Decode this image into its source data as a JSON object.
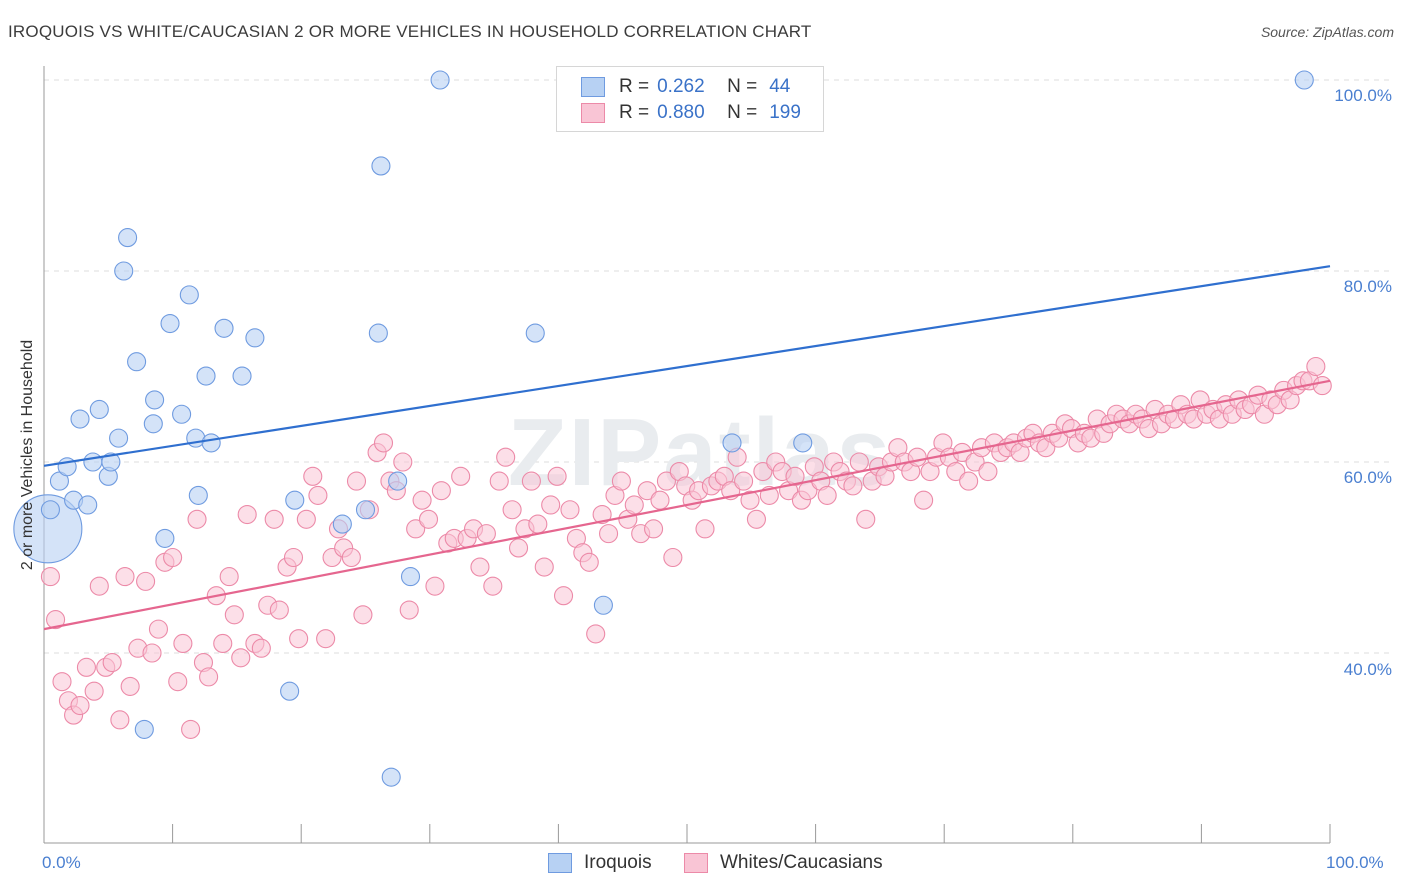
{
  "header": {
    "title": "IROQUOIS VS WHITE/CAUCASIAN 2 OR MORE VEHICLES IN HOUSEHOLD CORRELATION CHART",
    "source": "Source: ZipAtlas.com"
  },
  "watermark": {
    "text": "ZIPatlas"
  },
  "legend_top": {
    "rows": [
      {
        "r_label": "R =",
        "r_value": "0.262",
        "n_label": "N =",
        "n_value": "44",
        "color": "#b7d1f3",
        "border": "#6f9be0"
      },
      {
        "r_label": "R =",
        "r_value": "0.880",
        "n_label": "N =",
        "n_value": "199",
        "color": "#f9c5d5",
        "border": "#ec8aa8"
      }
    ]
  },
  "legend_bottom": {
    "items": [
      {
        "label": "Iroquois",
        "color": "#b7d1f3",
        "border": "#6f9be0"
      },
      {
        "label": "Whites/Caucasians",
        "color": "#f9c5d5",
        "border": "#ec8aa8"
      }
    ]
  },
  "chart_data": {
    "type": "scatter",
    "title": "IROQUOIS VS WHITE/CAUCASIAN 2 OR MORE VEHICLES IN HOUSEHOLD CORRELATION CHART",
    "xlabel": "",
    "ylabel": "2 or more Vehicles in Household",
    "xlim": [
      0,
      100
    ],
    "ylim": [
      20,
      102
    ],
    "x_tick_labels": [
      "0.0%",
      "100.0%"
    ],
    "y_ticks": [
      40,
      60,
      80,
      100
    ],
    "y_tick_labels": [
      "40.0%",
      "60.0%",
      "80.0%",
      "100.0%"
    ],
    "grid": true,
    "legend_position": "top-center",
    "series": [
      {
        "name": "Iroquois",
        "color": "#6f9be0",
        "fill": "#b7d1f3",
        "line_color": "#2f6fcf",
        "trend": {
          "x": [
            0,
            100
          ],
          "y": [
            59.6,
            80.5
          ]
        },
        "points": [
          [
            0.3,
            53.0
          ],
          [
            0.5,
            55.0
          ],
          [
            1.2,
            58.0
          ],
          [
            1.8,
            59.5
          ],
          [
            2.3,
            56.0
          ],
          [
            2.8,
            64.5
          ],
          [
            3.4,
            55.5
          ],
          [
            3.8,
            60.0
          ],
          [
            4.3,
            65.5
          ],
          [
            5.0,
            58.5
          ],
          [
            5.2,
            60.0
          ],
          [
            5.8,
            62.5
          ],
          [
            6.2,
            80.0
          ],
          [
            6.5,
            83.5
          ],
          [
            7.2,
            70.5
          ],
          [
            7.8,
            32.0
          ],
          [
            8.5,
            64.0
          ],
          [
            8.6,
            66.5
          ],
          [
            9.4,
            52.0
          ],
          [
            9.8,
            74.5
          ],
          [
            10.7,
            65.0
          ],
          [
            11.3,
            77.5
          ],
          [
            11.8,
            62.5
          ],
          [
            12.0,
            56.5
          ],
          [
            12.6,
            69.0
          ],
          [
            13.0,
            62.0
          ],
          [
            14.0,
            74.0
          ],
          [
            15.4,
            69.0
          ],
          [
            16.4,
            73.0
          ],
          [
            19.1,
            36.0
          ],
          [
            19.5,
            56.0
          ],
          [
            23.2,
            53.5
          ],
          [
            25.0,
            55.0
          ],
          [
            26.0,
            73.5
          ],
          [
            26.2,
            91.0
          ],
          [
            27.0,
            27.0
          ],
          [
            27.5,
            58.0
          ],
          [
            28.5,
            48.0
          ],
          [
            30.8,
            100.0
          ],
          [
            38.2,
            73.5
          ],
          [
            43.5,
            45.0
          ],
          [
            53.5,
            62.0
          ],
          [
            59.0,
            62.0
          ],
          [
            98.0,
            100.0
          ]
        ],
        "point_sizes": [
          34,
          9,
          9,
          9,
          9,
          9,
          9,
          9,
          9,
          9,
          9,
          9,
          9,
          9,
          9,
          9,
          9,
          9,
          9,
          9,
          9,
          9,
          9,
          9,
          9,
          9,
          9,
          9,
          9,
          9,
          9,
          9,
          9,
          9,
          9,
          9,
          9,
          9,
          9,
          9,
          9,
          9,
          9,
          9
        ]
      },
      {
        "name": "Whites/Caucasians",
        "color": "#ec8aa8",
        "fill": "#f9c5d5",
        "line_color": "#e5668f",
        "trend": {
          "x": [
            0,
            100
          ],
          "y": [
            42.5,
            68.5
          ]
        },
        "points": [
          [
            0.5,
            48.0
          ],
          [
            0.9,
            43.5
          ],
          [
            1.4,
            37.0
          ],
          [
            1.9,
            35.0
          ],
          [
            2.3,
            33.5
          ],
          [
            2.8,
            34.5
          ],
          [
            3.3,
            38.5
          ],
          [
            3.9,
            36.0
          ],
          [
            4.3,
            47.0
          ],
          [
            4.8,
            38.5
          ],
          [
            5.3,
            39.0
          ],
          [
            5.9,
            33.0
          ],
          [
            6.3,
            48.0
          ],
          [
            6.7,
            36.5
          ],
          [
            7.3,
            40.5
          ],
          [
            7.9,
            47.5
          ],
          [
            8.4,
            40.0
          ],
          [
            8.9,
            42.5
          ],
          [
            9.4,
            49.5
          ],
          [
            10.0,
            50.0
          ],
          [
            10.4,
            37.0
          ],
          [
            10.8,
            41.0
          ],
          [
            11.4,
            32.0
          ],
          [
            11.9,
            54.0
          ],
          [
            12.4,
            39.0
          ],
          [
            12.8,
            37.5
          ],
          [
            13.4,
            46.0
          ],
          [
            13.9,
            41.0
          ],
          [
            14.4,
            48.0
          ],
          [
            14.8,
            44.0
          ],
          [
            15.3,
            39.5
          ],
          [
            15.8,
            54.5
          ],
          [
            16.4,
            41.0
          ],
          [
            16.9,
            40.5
          ],
          [
            17.4,
            45.0
          ],
          [
            17.9,
            54.0
          ],
          [
            18.3,
            44.5
          ],
          [
            18.9,
            49.0
          ],
          [
            19.4,
            50.0
          ],
          [
            19.8,
            41.5
          ],
          [
            20.4,
            54.0
          ],
          [
            20.9,
            58.5
          ],
          [
            21.3,
            56.5
          ],
          [
            21.9,
            41.5
          ],
          [
            22.4,
            50.0
          ],
          [
            22.9,
            53.0
          ],
          [
            23.3,
            51.0
          ],
          [
            23.9,
            50.0
          ],
          [
            24.3,
            58.0
          ],
          [
            24.8,
            44.0
          ],
          [
            25.3,
            55.0
          ],
          [
            25.9,
            61.0
          ],
          [
            26.4,
            62.0
          ],
          [
            26.9,
            58.0
          ],
          [
            27.4,
            57.0
          ],
          [
            27.9,
            60.0
          ],
          [
            28.4,
            44.5
          ],
          [
            28.9,
            53.0
          ],
          [
            29.4,
            56.0
          ],
          [
            29.9,
            54.0
          ],
          [
            30.4,
            47.0
          ],
          [
            30.9,
            57.0
          ],
          [
            31.4,
            51.5
          ],
          [
            31.9,
            52.0
          ],
          [
            32.4,
            58.5
          ],
          [
            32.9,
            52.0
          ],
          [
            33.4,
            53.0
          ],
          [
            33.9,
            49.0
          ],
          [
            34.4,
            52.5
          ],
          [
            34.9,
            47.0
          ],
          [
            35.4,
            58.0
          ],
          [
            35.9,
            60.5
          ],
          [
            36.4,
            55.0
          ],
          [
            36.9,
            51.0
          ],
          [
            37.4,
            53.0
          ],
          [
            37.9,
            58.0
          ],
          [
            38.4,
            53.5
          ],
          [
            38.9,
            49.0
          ],
          [
            39.4,
            55.5
          ],
          [
            39.9,
            58.5
          ],
          [
            40.4,
            46.0
          ],
          [
            40.9,
            55.0
          ],
          [
            41.4,
            52.0
          ],
          [
            41.9,
            50.5
          ],
          [
            42.4,
            49.5
          ],
          [
            42.9,
            42.0
          ],
          [
            43.4,
            54.5
          ],
          [
            43.9,
            52.5
          ],
          [
            44.4,
            56.5
          ],
          [
            44.9,
            58.0
          ],
          [
            45.4,
            54.0
          ],
          [
            45.9,
            55.5
          ],
          [
            46.4,
            52.5
          ],
          [
            46.9,
            57.0
          ],
          [
            47.4,
            53.0
          ],
          [
            47.9,
            56.0
          ],
          [
            48.4,
            58.0
          ],
          [
            48.9,
            50.0
          ],
          [
            49.4,
            59.0
          ],
          [
            49.9,
            57.5
          ],
          [
            50.4,
            56.0
          ],
          [
            50.9,
            57.0
          ],
          [
            51.4,
            53.0
          ],
          [
            51.9,
            57.5
          ],
          [
            52.4,
            58.0
          ],
          [
            52.9,
            58.5
          ],
          [
            53.4,
            57.0
          ],
          [
            53.9,
            60.5
          ],
          [
            54.4,
            58.0
          ],
          [
            54.9,
            56.0
          ],
          [
            55.4,
            54.0
          ],
          [
            55.9,
            59.0
          ],
          [
            56.4,
            56.5
          ],
          [
            56.9,
            60.0
          ],
          [
            57.4,
            59.0
          ],
          [
            57.9,
            57.0
          ],
          [
            58.4,
            58.5
          ],
          [
            58.9,
            56.0
          ],
          [
            59.4,
            57.0
          ],
          [
            59.9,
            59.5
          ],
          [
            60.4,
            58.0
          ],
          [
            60.9,
            56.5
          ],
          [
            61.4,
            60.0
          ],
          [
            61.9,
            59.0
          ],
          [
            62.4,
            58.0
          ],
          [
            62.9,
            57.5
          ],
          [
            63.4,
            60.0
          ],
          [
            63.9,
            54.0
          ],
          [
            64.4,
            58.0
          ],
          [
            64.9,
            59.5
          ],
          [
            65.4,
            58.5
          ],
          [
            65.9,
            60.0
          ],
          [
            66.4,
            61.5
          ],
          [
            66.9,
            60.0
          ],
          [
            67.4,
            59.0
          ],
          [
            67.9,
            60.5
          ],
          [
            68.4,
            56.0
          ],
          [
            68.9,
            59.0
          ],
          [
            69.4,
            60.5
          ],
          [
            69.9,
            62.0
          ],
          [
            70.4,
            60.5
          ],
          [
            70.9,
            59.0
          ],
          [
            71.4,
            61.0
          ],
          [
            71.9,
            58.0
          ],
          [
            72.4,
            60.0
          ],
          [
            72.9,
            61.5
          ],
          [
            73.4,
            59.0
          ],
          [
            73.9,
            62.0
          ],
          [
            74.4,
            61.0
          ],
          [
            74.9,
            61.5
          ],
          [
            75.4,
            62.0
          ],
          [
            75.9,
            61.0
          ],
          [
            76.4,
            62.5
          ],
          [
            76.9,
            63.0
          ],
          [
            77.4,
            62.0
          ],
          [
            77.9,
            61.5
          ],
          [
            78.4,
            63.0
          ],
          [
            78.9,
            62.5
          ],
          [
            79.4,
            64.0
          ],
          [
            79.9,
            63.5
          ],
          [
            80.4,
            62.0
          ],
          [
            80.9,
            63.0
          ],
          [
            81.4,
            62.5
          ],
          [
            81.9,
            64.5
          ],
          [
            82.4,
            63.0
          ],
          [
            82.9,
            64.0
          ],
          [
            83.4,
            65.0
          ],
          [
            83.9,
            64.5
          ],
          [
            84.4,
            64.0
          ],
          [
            84.9,
            65.0
          ],
          [
            85.4,
            64.5
          ],
          [
            85.9,
            63.5
          ],
          [
            86.4,
            65.5
          ],
          [
            86.9,
            64.0
          ],
          [
            87.4,
            65.0
          ],
          [
            87.9,
            64.5
          ],
          [
            88.4,
            66.0
          ],
          [
            88.9,
            65.0
          ],
          [
            89.4,
            64.5
          ],
          [
            89.9,
            66.5
          ],
          [
            90.4,
            65.0
          ],
          [
            90.9,
            65.5
          ],
          [
            91.4,
            64.5
          ],
          [
            91.9,
            66.0
          ],
          [
            92.4,
            65.0
          ],
          [
            92.9,
            66.5
          ],
          [
            93.4,
            65.5
          ],
          [
            93.9,
            66.0
          ],
          [
            94.4,
            67.0
          ],
          [
            94.9,
            65.0
          ],
          [
            95.4,
            66.5
          ],
          [
            95.9,
            66.0
          ],
          [
            96.4,
            67.5
          ],
          [
            96.9,
            66.5
          ],
          [
            97.4,
            68.0
          ],
          [
            97.9,
            68.5
          ],
          [
            98.4,
            68.5
          ],
          [
            98.9,
            70.0
          ],
          [
            99.4,
            68.0
          ]
        ]
      }
    ]
  }
}
